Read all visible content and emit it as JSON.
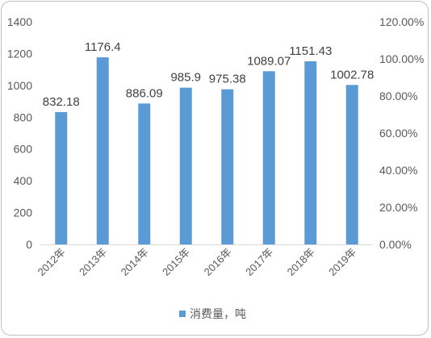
{
  "chart_data": {
    "type": "bar",
    "categories": [
      "2012年",
      "2013年",
      "2014年",
      "2015年",
      "2016年",
      "2017年",
      "2018年",
      "2019年"
    ],
    "series": [
      {
        "name": "消费量，吨",
        "values": [
          832.18,
          1176.4,
          886.09,
          985.9,
          975.38,
          1089.07,
          1151.43,
          1002.78
        ],
        "labels": [
          "832.18",
          "1176.4",
          "886.09",
          "985.9",
          "975.38",
          "1089.07",
          "1151.43",
          "1002.78"
        ]
      }
    ],
    "ylim": [
      0,
      1400
    ],
    "yticks": [
      "0",
      "200",
      "400",
      "600",
      "800",
      "1000",
      "1200",
      "1400"
    ],
    "y2lim": [
      0,
      1.2
    ],
    "y2ticks": [
      "0.00%",
      "20.00%",
      "40.00%",
      "60.00%",
      "80.00%",
      "100.00%",
      "120.00%"
    ],
    "legend_position": "bottom",
    "grid": false,
    "colors": {
      "bar": "#5b9bd5",
      "axis": "#d9d9d9"
    }
  }
}
